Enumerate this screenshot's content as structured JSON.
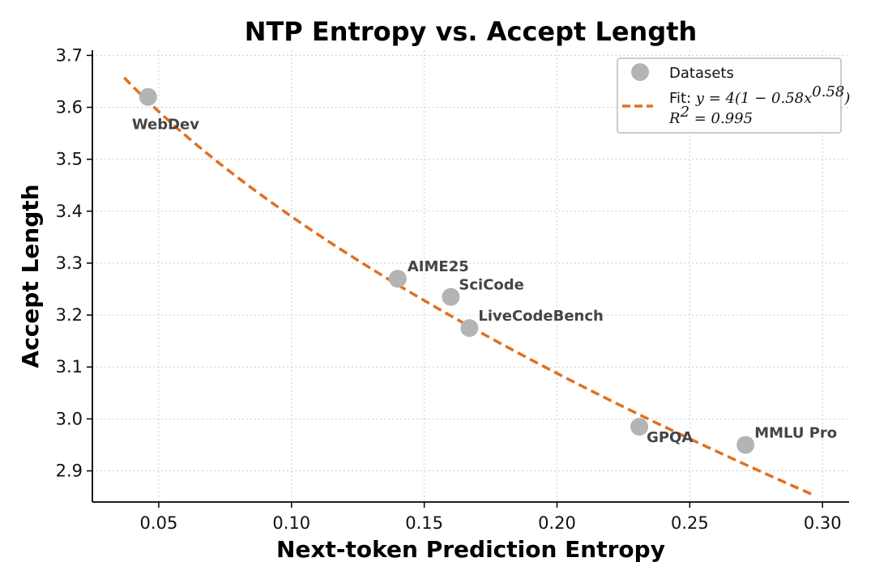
{
  "chart_data": {
    "type": "scatter",
    "title": "NTP Entropy vs. Accept Length",
    "xlabel": "Next-token Prediction Entropy",
    "ylabel": "Accept Length",
    "xlim": [
      0.025,
      0.31
    ],
    "ylim": [
      2.84,
      3.71
    ],
    "xticks": [
      0.05,
      0.1,
      0.15,
      0.2,
      0.25,
      0.3
    ],
    "xtick_labels": [
      "0.05",
      "0.10",
      "0.15",
      "0.20",
      "0.25",
      "0.30"
    ],
    "yticks": [
      2.9,
      3.0,
      3.1,
      3.2,
      3.3,
      3.4,
      3.5,
      3.6,
      3.7
    ],
    "ytick_labels": [
      "2.9",
      "3.0",
      "3.1",
      "3.2",
      "3.3",
      "3.4",
      "3.5",
      "3.6",
      "3.7"
    ],
    "grid": true,
    "legend_position": "top-right",
    "series": [
      {
        "name": "Datasets",
        "kind": "scatter",
        "color": "#b4b4b4",
        "points": [
          {
            "label": "WebDev",
            "x": 0.046,
            "y": 3.62
          },
          {
            "label": "AIME25",
            "x": 0.14,
            "y": 3.27
          },
          {
            "label": "SciCode",
            "x": 0.16,
            "y": 3.235
          },
          {
            "label": "LiveCodeBench",
            "x": 0.167,
            "y": 3.175
          },
          {
            "label": "GPQA",
            "x": 0.231,
            "y": 2.985
          },
          {
            "label": "MMLU Pro",
            "x": 0.271,
            "y": 2.95
          }
        ]
      },
      {
        "name": "Fit: y = 4(1 − 0.58x^0.58)",
        "kind": "line",
        "style": "dashed",
        "color": "#e07020",
        "formula": {
          "a": 4,
          "b": 0.58,
          "c": 0.58
        },
        "x_range": [
          0.037,
          0.297
        ]
      }
    ],
    "legend": {
      "scatter_label": "Datasets",
      "fit_prefix": "Fit: ",
      "fit_equation": "y = 4(1 − 0.58x",
      "fit_exponent": "0.58",
      "fit_close": ")",
      "r2_label": "R",
      "r2_exponent": "2",
      "r2_value": " = 0.995"
    }
  }
}
